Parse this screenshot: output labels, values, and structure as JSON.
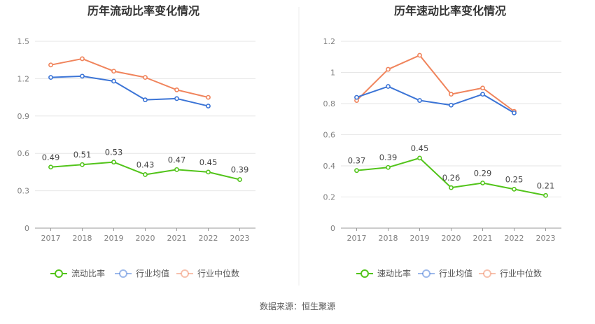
{
  "source_label": "数据来源：恒生聚源",
  "chart_data": [
    {
      "type": "line",
      "title": "历年流动比率变化情况",
      "categories": [
        "2017",
        "2018",
        "2019",
        "2020",
        "2021",
        "2022",
        "2023"
      ],
      "ylim": [
        0,
        1.5
      ],
      "yticks": [
        "0",
        "0.3",
        "0.6",
        "0.9",
        "1.2",
        "1.5"
      ],
      "ytick_values": [
        0,
        0.3,
        0.6,
        0.9,
        1.2,
        1.5
      ],
      "grid": true,
      "legend_position": "bottom",
      "series": [
        {
          "name": "流动比率",
          "color": "#52c41a",
          "values": [
            0.49,
            0.51,
            0.53,
            0.43,
            0.47,
            0.45,
            0.39
          ],
          "labels": [
            "0.49",
            "0.51",
            "0.53",
            "0.43",
            "0.47",
            "0.45",
            "0.39"
          ]
        },
        {
          "name": "行业均值",
          "color": "#3b74d6",
          "values": [
            1.21,
            1.22,
            1.18,
            1.03,
            1.04,
            0.98,
            null
          ]
        },
        {
          "name": "行业中位数",
          "color": "#f0845c",
          "values": [
            1.31,
            1.36,
            1.26,
            1.21,
            1.11,
            1.05,
            null
          ]
        }
      ]
    },
    {
      "type": "line",
      "title": "历年速动比率变化情况",
      "categories": [
        "2017",
        "2018",
        "2019",
        "2020",
        "2021",
        "2022",
        "2023"
      ],
      "ylim": [
        0,
        1.2
      ],
      "yticks": [
        "0",
        "0.2",
        "0.4",
        "0.6",
        "0.8",
        "1",
        "1.2"
      ],
      "ytick_values": [
        0,
        0.2,
        0.4,
        0.6,
        0.8,
        1.0,
        1.2
      ],
      "grid": true,
      "legend_position": "bottom",
      "series": [
        {
          "name": "速动比率",
          "color": "#52c41a",
          "values": [
            0.37,
            0.39,
            0.45,
            0.26,
            0.29,
            0.25,
            0.21
          ],
          "labels": [
            "0.37",
            "0.39",
            "0.45",
            "0.26",
            "0.29",
            "0.25",
            "0.21"
          ]
        },
        {
          "name": "行业均值",
          "color": "#3b74d6",
          "values": [
            0.84,
            0.91,
            0.82,
            0.79,
            0.86,
            0.74,
            null
          ]
        },
        {
          "name": "行业中位数",
          "color": "#f0845c",
          "values": [
            0.82,
            1.02,
            1.11,
            0.86,
            0.9,
            0.75,
            null
          ]
        }
      ]
    }
  ]
}
